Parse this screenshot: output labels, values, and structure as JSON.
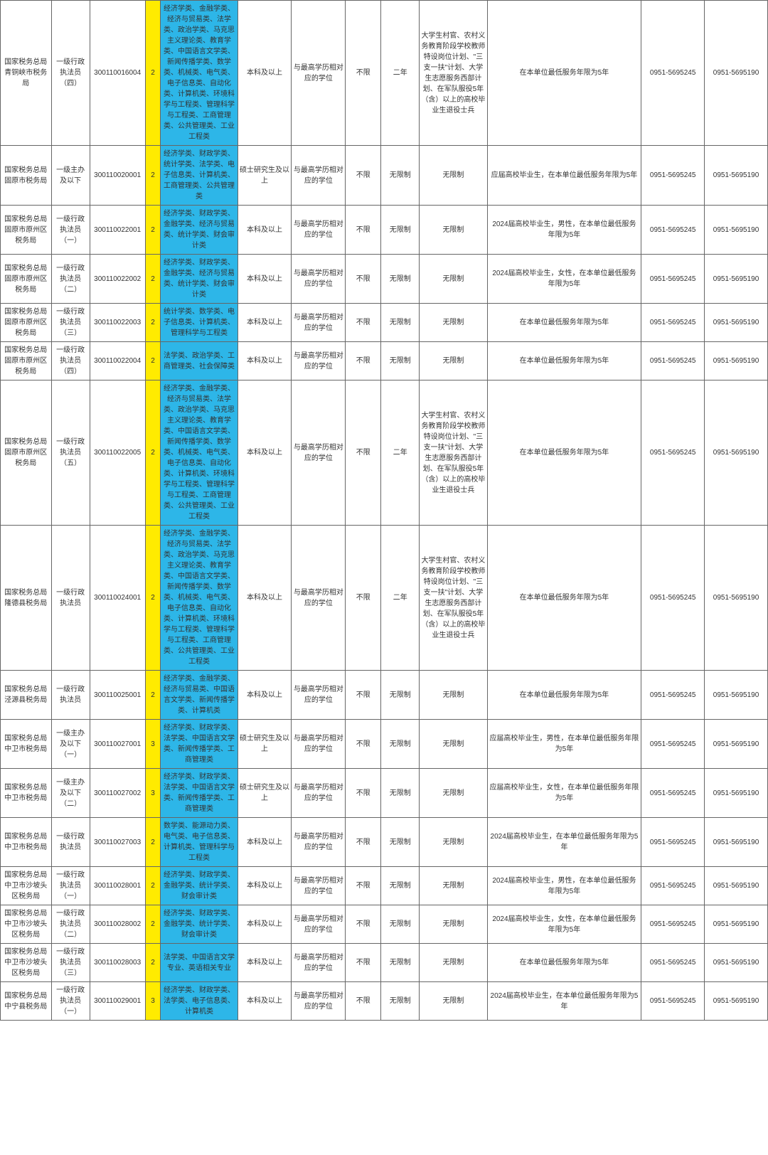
{
  "colors": {
    "yellow": "#ffeb00",
    "blue": "#2db6e8",
    "border": "#666666",
    "text": "#333333",
    "bg": "#ffffff"
  },
  "rows": [
    {
      "org": "国家税务总局青铜峡市税务局",
      "pos": "一级行政执法员（四）",
      "code": "300110016004",
      "count": "2",
      "major": "经济学类、金融学类、经济与贸易类、法学类、政治学类、马克思主义理论类、教育学类、中国语言文学类、新闻传播学类、数学类、机械类、电气类、电子信息类、自动化类、计算机类、环境科学与工程类、管理科学与工程类、工商管理类、公共管理类、工业工程类",
      "edu": "本科及以上",
      "degree": "与最高学历相对应的学位",
      "exp": "不限",
      "years": "二年",
      "cond": "大学生村官、农村义务教育阶段学校教师特设岗位计划、\"三支一扶\"计划、大学生志愿服务西部计划、在军队服役5年（含）以上的高校毕业生退役士兵",
      "remark": "在本单位最低服务年限为5年",
      "tel1": "0951-5695245",
      "tel2": "0951-5695190"
    },
    {
      "org": "国家税务总局固原市税务局",
      "pos": "一级主办及以下",
      "code": "300110020001",
      "count": "2",
      "major": "经济学类、财政学类、统计学类、法学类、电子信息类、计算机类、工商管理类、公共管理类",
      "edu": "硕士研究生及以上",
      "degree": "与最高学历相对应的学位",
      "exp": "不限",
      "years": "无限制",
      "cond": "无限制",
      "remark": "应届高校毕业生，在本单位最低服务年限为5年",
      "tel1": "0951-5695245",
      "tel2": "0951-5695190"
    },
    {
      "org": "国家税务总局固原市原州区税务局",
      "pos": "一级行政执法员（一）",
      "code": "300110022001",
      "count": "2",
      "major": "经济学类、财政学类、金融学类、经济与贸易类、统计学类、财会审计类",
      "edu": "本科及以上",
      "degree": "与最高学历相对应的学位",
      "exp": "不限",
      "years": "无限制",
      "cond": "无限制",
      "remark": "2024届高校毕业生，男性，在本单位最低服务年限为5年",
      "tel1": "0951-5695245",
      "tel2": "0951-5695190"
    },
    {
      "org": "国家税务总局固原市原州区税务局",
      "pos": "一级行政执法员（二）",
      "code": "300110022002",
      "count": "2",
      "major": "经济学类、财政学类、金融学类、经济与贸易类、统计学类、财会审计类",
      "edu": "本科及以上",
      "degree": "与最高学历相对应的学位",
      "exp": "不限",
      "years": "无限制",
      "cond": "无限制",
      "remark": "2024届高校毕业生，女性，在本单位最低服务年限为5年",
      "tel1": "0951-5695245",
      "tel2": "0951-5695190"
    },
    {
      "org": "国家税务总局固原市原州区税务局",
      "pos": "一级行政执法员（三）",
      "code": "300110022003",
      "count": "2",
      "major": "统计学类、数学类、电子信息类、计算机类、管理科学与工程类",
      "edu": "本科及以上",
      "degree": "与最高学历相对应的学位",
      "exp": "不限",
      "years": "无限制",
      "cond": "无限制",
      "remark": "在本单位最低服务年限为5年",
      "tel1": "0951-5695245",
      "tel2": "0951-5695190"
    },
    {
      "org": "国家税务总局固原市原州区税务局",
      "pos": "一级行政执法员（四）",
      "code": "300110022004",
      "count": "2",
      "major": "法学类、政治学类、工商管理类、社会保障类",
      "edu": "本科及以上",
      "degree": "与最高学历相对应的学位",
      "exp": "不限",
      "years": "无限制",
      "cond": "无限制",
      "remark": "在本单位最低服务年限为5年",
      "tel1": "0951-5695245",
      "tel2": "0951-5695190"
    },
    {
      "org": "国家税务总局固原市原州区税务局",
      "pos": "一级行政执法员（五）",
      "code": "300110022005",
      "count": "2",
      "major": "经济学类、金融学类、经济与贸易类、法学类、政治学类、马克思主义理论类、教育学类、中国语言文学类、新闻传播学类、数学类、机械类、电气类、电子信息类、自动化类、计算机类、环境科学与工程类、管理科学与工程类、工商管理类、公共管理类、工业工程类",
      "edu": "本科及以上",
      "degree": "与最高学历相对应的学位",
      "exp": "不限",
      "years": "二年",
      "cond": "大学生村官、农村义务教育阶段学校教师特设岗位计划、\"三支一扶\"计划、大学生志愿服务西部计划、在军队服役5年（含）以上的高校毕业生退役士兵",
      "remark": "在本单位最低服务年限为5年",
      "tel1": "0951-5695245",
      "tel2": "0951-5695190"
    },
    {
      "org": "国家税务总局隆德县税务局",
      "pos": "一级行政执法员",
      "code": "300110024001",
      "count": "2",
      "major": "经济学类、金融学类、经济与贸易类、法学类、政治学类、马克思主义理论类、教育学类、中国语言文学类、新闻传播学类、数学类、机械类、电气类、电子信息类、自动化类、计算机类、环境科学与工程类、管理科学与工程类、工商管理类、公共管理类、工业工程类",
      "edu": "本科及以上",
      "degree": "与最高学历相对应的学位",
      "exp": "不限",
      "years": "二年",
      "cond": "大学生村官、农村义务教育阶段学校教师特设岗位计划、\"三支一扶\"计划、大学生志愿服务西部计划、在军队服役5年（含）以上的高校毕业生退役士兵",
      "remark": "在本单位最低服务年限为5年",
      "tel1": "0951-5695245",
      "tel2": "0951-5695190"
    },
    {
      "org": "国家税务总局泾源县税务局",
      "pos": "一级行政执法员",
      "code": "300110025001",
      "count": "2",
      "major": "经济学类、金融学类、经济与贸易类、中国语言文学类、新闻传播学类、计算机类",
      "edu": "本科及以上",
      "degree": "与最高学历相对应的学位",
      "exp": "不限",
      "years": "无限制",
      "cond": "无限制",
      "remark": "在本单位最低服务年限为5年",
      "tel1": "0951-5695245",
      "tel2": "0951-5695190"
    },
    {
      "org": "国家税务总局中卫市税务局",
      "pos": "一级主办及以下（一）",
      "code": "300110027001",
      "count": "3",
      "major": "经济学类、财政学类、法学类、中国语言文学类、新闻传播学类、工商管理类",
      "edu": "硕士研究生及以上",
      "degree": "与最高学历相对应的学位",
      "exp": "不限",
      "years": "无限制",
      "cond": "无限制",
      "remark": "应届高校毕业生，男性，在本单位最低服务年限为5年",
      "tel1": "0951-5695245",
      "tel2": "0951-5695190"
    },
    {
      "org": "国家税务总局中卫市税务局",
      "pos": "一级主办及以下（二）",
      "code": "300110027002",
      "count": "3",
      "major": "经济学类、财政学类、法学类、中国语言文学类、新闻传播学类、工商管理类",
      "edu": "硕士研究生及以上",
      "degree": "与最高学历相对应的学位",
      "exp": "不限",
      "years": "无限制",
      "cond": "无限制",
      "remark": "应届高校毕业生，女性，在本单位最低服务年限为5年",
      "tel1": "0951-5695245",
      "tel2": "0951-5695190"
    },
    {
      "org": "国家税务总局中卫市税务局",
      "pos": "一级行政执法员",
      "code": "300110027003",
      "count": "2",
      "major": "数学类、能源动力类、电气类、电子信息类、计算机类、管理科学与工程类",
      "edu": "本科及以上",
      "degree": "与最高学历相对应的学位",
      "exp": "不限",
      "years": "无限制",
      "cond": "无限制",
      "remark": "2024届高校毕业生，在本单位最低服务年限为5年",
      "tel1": "0951-5695245",
      "tel2": "0951-5695190"
    },
    {
      "org": "国家税务总局中卫市沙坡头区税务局",
      "pos": "一级行政执法员（一）",
      "code": "300110028001",
      "count": "2",
      "major": "经济学类、财政学类、金融学类、统计学类、财会审计类",
      "edu": "本科及以上",
      "degree": "与最高学历相对应的学位",
      "exp": "不限",
      "years": "无限制",
      "cond": "无限制",
      "remark": "2024届高校毕业生，男性，在本单位最低服务年限为5年",
      "tel1": "0951-5695245",
      "tel2": "0951-5695190"
    },
    {
      "org": "国家税务总局中卫市沙坡头区税务局",
      "pos": "一级行政执法员（二）",
      "code": "300110028002",
      "count": "2",
      "major": "经济学类、财政学类、金融学类、统计学类、财会审计类",
      "edu": "本科及以上",
      "degree": "与最高学历相对应的学位",
      "exp": "不限",
      "years": "无限制",
      "cond": "无限制",
      "remark": "2024届高校毕业生，女性，在本单位最低服务年限为5年",
      "tel1": "0951-5695245",
      "tel2": "0951-5695190"
    },
    {
      "org": "国家税务总局中卫市沙坡头区税务局",
      "pos": "一级行政执法员（三）",
      "code": "300110028003",
      "count": "2",
      "major": "法学类、中国语言文学专业、英语相关专业",
      "edu": "本科及以上",
      "degree": "与最高学历相对应的学位",
      "exp": "不限",
      "years": "无限制",
      "cond": "无限制",
      "remark": "在本单位最低服务年限为5年",
      "tel1": "0951-5695245",
      "tel2": "0951-5695190"
    },
    {
      "org": "国家税务总局中宁县税务局",
      "pos": "一级行政执法员（一）",
      "code": "300110029001",
      "count": "3",
      "major": "经济学类、财政学类、法学类、电子信息类、计算机类",
      "edu": "本科及以上",
      "degree": "与最高学历相对应的学位",
      "exp": "不限",
      "years": "无限制",
      "cond": "无限制",
      "remark": "2024届高校毕业生，在本单位最低服务年限为5年",
      "tel1": "0951-5695245",
      "tel2": "0951-5695190"
    }
  ]
}
